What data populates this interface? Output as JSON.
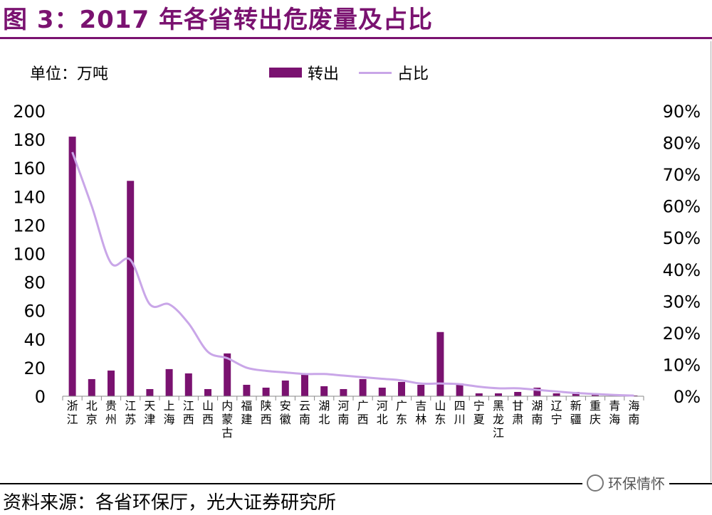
{
  "title": "图 3：2017 年各省转出危废量及占比",
  "unit_label": "单位：万吨",
  "legend": {
    "bar": "转出",
    "line": "占比"
  },
  "source": "资料来源：各省环保厅，光大证券研究所",
  "watermark": "环保情怀",
  "colors": {
    "bar": "#7a1270",
    "line": "#c9a6e8",
    "title": "#7a1270"
  },
  "chart_data": {
    "type": "bar",
    "title": "",
    "ylim": [
      0,
      200
    ],
    "y2lim": [
      0,
      90
    ],
    "y_ticks": [
      "0",
      "20",
      "40",
      "60",
      "80",
      "100",
      "120",
      "140",
      "160",
      "180",
      "200"
    ],
    "y2_ticks": [
      "0%",
      "10%",
      "20%",
      "30%",
      "40%",
      "50%",
      "60%",
      "70%",
      "80%",
      "90%"
    ],
    "categories": [
      "浙江",
      "北京",
      "贵州",
      "江苏",
      "天津",
      "上海",
      "江西",
      "山西",
      "内蒙古",
      "福建",
      "陕西",
      "安徽",
      "云南",
      "湖北",
      "河南",
      "广西",
      "河北",
      "广东",
      "吉林",
      "山东",
      "四川",
      "宁夏",
      "黑龙江",
      "甘肃",
      "湖南",
      "辽宁",
      "新疆",
      "重庆",
      "青海",
      "海南"
    ],
    "series": [
      {
        "name": "转出",
        "axis": "left",
        "type": "bar",
        "values": [
          182,
          12,
          18,
          151,
          5,
          19,
          16,
          5,
          30,
          8,
          6,
          11,
          15,
          7,
          5,
          12,
          6,
          10,
          8,
          45,
          9,
          2,
          2,
          3,
          6,
          2,
          3,
          1,
          1,
          0.5
        ]
      },
      {
        "name": "占比",
        "axis": "right",
        "type": "line",
        "values": [
          77,
          60,
          42,
          43,
          29,
          29,
          23,
          14,
          12,
          9,
          8,
          7.5,
          7,
          7,
          6.5,
          6,
          5.5,
          5,
          4,
          4,
          3.8,
          3,
          2.5,
          2.5,
          2,
          1.5,
          1,
          0.7,
          0.4,
          0.2
        ]
      }
    ]
  }
}
